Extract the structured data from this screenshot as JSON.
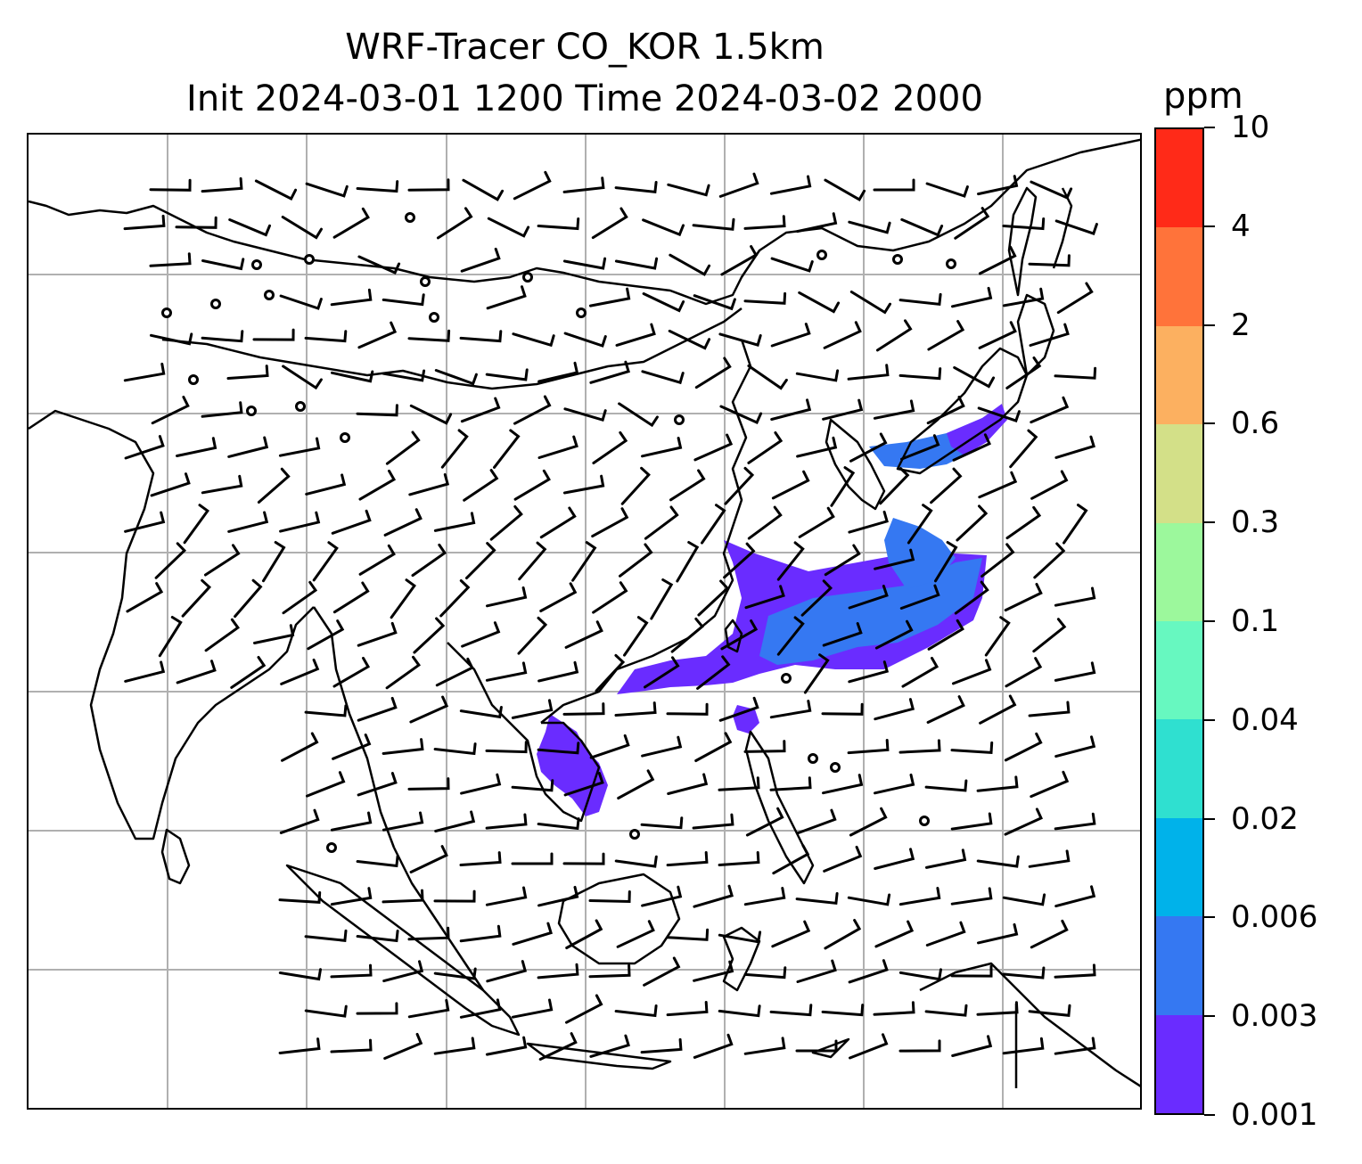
{
  "title": {
    "line1": "WRF-Tracer CO_KOR 1.5km",
    "line2": "Init 2024-03-01 1200 Time 2024-03-02 2000"
  },
  "colorbar": {
    "unit": "ppm",
    "ticks": [
      "0.001",
      "0.003",
      "0.006",
      "0.02",
      "0.04",
      "0.1",
      "0.3",
      "0.6",
      "2",
      "4",
      "10"
    ],
    "colors": [
      "#6a2cff",
      "#3578f2",
      "#00b2ea",
      "#2fe0d0",
      "#67f8c0",
      "#9cf89c",
      "#d3e088",
      "#fcb060",
      "#ff733a",
      "#ff2a18"
    ]
  },
  "map": {
    "gridlines": true,
    "coastline_color": "#000000",
    "grid_color": "#b0b0b0",
    "wind_barb_color": "#000000",
    "plume_colors": {
      "low": "#6a2cff",
      "mid": "#3578f2"
    }
  }
}
